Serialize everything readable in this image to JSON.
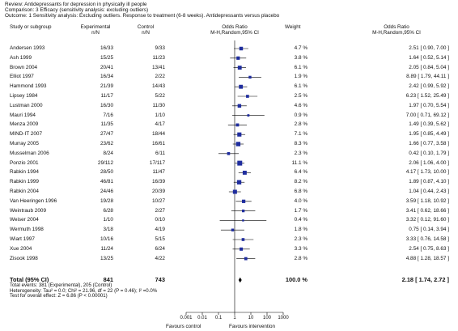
{
  "header": {
    "review": "Review:  Antidepressants for depression in physically ill people",
    "comparison": "Comparison:  3 Efficacy (sensitivity analysis: excluding outliers)",
    "outcome": "Outcome:  1 Sensitivity analysis: Excluding outliers. Response to treatment (6-8 weeks). Antidepressants versus placebo"
  },
  "columns": {
    "study_line1": "Study or subgroup",
    "exp_line1": "Experimental",
    "exp_line2": "n/N",
    "ctl_line1": "Control",
    "ctl_line2": "n/N",
    "or_line1": "Odds Ratio",
    "or_line2": "M-H,Random,95% CI",
    "weight_line1": "Weight",
    "ci_line1": "Odds Ratio",
    "ci_line2": "M-H,Random,95% CI"
  },
  "chart_data": {
    "type": "forest",
    "x_scale": "log",
    "xlim": [
      0.001,
      1000
    ],
    "x_ticks": [
      "0.001",
      "0.01",
      "0.1",
      "1",
      "10",
      "100",
      "1000"
    ],
    "studies": [
      {
        "name": "Andersen 1993",
        "exp": "16/33",
        "ctl": "9/33",
        "weight": "4.7 %",
        "ci_text": "2.51 [ 0.90, 7.00 ]",
        "or": 2.51,
        "lo": 0.9,
        "hi": 7.0,
        "w": 4.7
      },
      {
        "name": "Ash 1999",
        "exp": "15/25",
        "ctl": "11/23",
        "weight": "3.8 %",
        "ci_text": "1.64 [ 0.52, 5.14 ]",
        "or": 1.64,
        "lo": 0.52,
        "hi": 5.14,
        "w": 3.8
      },
      {
        "name": "Brown 2004",
        "exp": "20/41",
        "ctl": "13/41",
        "weight": "6.1 %",
        "ci_text": "2.05 [ 0.84, 5.04 ]",
        "or": 2.05,
        "lo": 0.84,
        "hi": 5.04,
        "w": 6.1
      },
      {
        "name": "Elliot 1997",
        "exp": "16/34",
        "ctl": "2/22",
        "weight": "1.9 %",
        "ci_text": "8.89 [ 1.79, 44.11 ]",
        "or": 8.89,
        "lo": 1.79,
        "hi": 44.11,
        "w": 1.9
      },
      {
        "name": "Hammond 1993",
        "exp": "21/39",
        "ctl": "14/43",
        "weight": "6.1 %",
        "ci_text": "2.42 [ 0.99, 5.92 ]",
        "or": 2.42,
        "lo": 0.99,
        "hi": 5.92,
        "w": 6.1
      },
      {
        "name": "Lipsey 1984",
        "exp": "11/17",
        "ctl": "5/22",
        "weight": "2.5 %",
        "ci_text": "6.23 [ 1.52, 25.49 ]",
        "or": 6.23,
        "lo": 1.52,
        "hi": 25.49,
        "w": 2.5
      },
      {
        "name": "Lustman 2000",
        "exp": "16/30",
        "ctl": "11/30",
        "weight": "4.6 %",
        "ci_text": "1.97 [ 0.70, 5.54 ]",
        "or": 1.97,
        "lo": 0.7,
        "hi": 5.54,
        "w": 4.6
      },
      {
        "name": "Mauri 1994",
        "exp": "7/16",
        "ctl": "1/10",
        "weight": "0.9 %",
        "ci_text": "7.00 [ 0.71, 69.12 ]",
        "or": 7.0,
        "lo": 0.71,
        "hi": 69.12,
        "w": 0.9
      },
      {
        "name": "Menza 2009",
        "exp": "11/35",
        "ctl": "4/17",
        "weight": "2.8 %",
        "ci_text": "1.49 [ 0.39, 5.62 ]",
        "or": 1.49,
        "lo": 0.39,
        "hi": 5.62,
        "w": 2.8
      },
      {
        "name": "MIND-IT 2007",
        "exp": "27/47",
        "ctl": "18/44",
        "weight": "7.1 %",
        "ci_text": "1.95 [ 0.85, 4.49 ]",
        "or": 1.95,
        "lo": 0.85,
        "hi": 4.49,
        "w": 7.1
      },
      {
        "name": "Murray 2005",
        "exp": "23/62",
        "ctl": "16/61",
        "weight": "8.3 %",
        "ci_text": "1.66 [ 0.77, 3.58 ]",
        "or": 1.66,
        "lo": 0.77,
        "hi": 3.58,
        "w": 8.3
      },
      {
        "name": "Musselman 2006",
        "exp": "8/24",
        "ctl": "6/11",
        "weight": "2.3 %",
        "ci_text": "0.42 [ 0.10, 1.79 ]",
        "or": 0.42,
        "lo": 0.1,
        "hi": 1.79,
        "w": 2.3
      },
      {
        "name": "Ponzio 2001",
        "exp": "29/112",
        "ctl": "17/117",
        "weight": "11.1 %",
        "ci_text": "2.06 [ 1.06, 4.00 ]",
        "or": 2.06,
        "lo": 1.06,
        "hi": 4.0,
        "w": 11.1
      },
      {
        "name": "Rabkin 1994",
        "exp": "28/50",
        "ctl": "11/47",
        "weight": "6.4 %",
        "ci_text": "4.17 [ 1.73, 10.00 ]",
        "or": 4.17,
        "lo": 1.73,
        "hi": 10.0,
        "w": 6.4
      },
      {
        "name": "Rabkin 1999",
        "exp": "46/81",
        "ctl": "16/39",
        "weight": "8.2 %",
        "ci_text": "1.89 [ 0.87, 4.10 ]",
        "or": 1.89,
        "lo": 0.87,
        "hi": 4.1,
        "w": 8.2
      },
      {
        "name": "Rabkin 2004",
        "exp": "24/46",
        "ctl": "20/39",
        "weight": "6.8 %",
        "ci_text": "1.04 [ 0.44, 2.43 ]",
        "or": 1.04,
        "lo": 0.44,
        "hi": 2.43,
        "w": 6.8
      },
      {
        "name": "Van Heeringen 1996",
        "exp": "19/28",
        "ctl": "10/27",
        "weight": "4.0 %",
        "ci_text": "3.59 [ 1.18, 10.92 ]",
        "or": 3.59,
        "lo": 1.18,
        "hi": 10.92,
        "w": 4.0
      },
      {
        "name": "Weintraub 2009",
        "exp": "6/28",
        "ctl": "2/27",
        "weight": "1.7 %",
        "ci_text": "3.41 [ 0.62, 18.66 ]",
        "or": 3.41,
        "lo": 0.62,
        "hi": 18.66,
        "w": 1.7
      },
      {
        "name": "Weiser 2004",
        "exp": "1/10",
        "ctl": "0/10",
        "weight": "0.4 %",
        "ci_text": "3.32 [ 0.12, 91.60 ]",
        "or": 3.32,
        "lo": 0.12,
        "hi": 91.6,
        "w": 0.4
      },
      {
        "name": "Wermuth 1998",
        "exp": "3/18",
        "ctl": "4/19",
        "weight": "1.8 %",
        "ci_text": "0.75 [ 0.14, 3.94 ]",
        "or": 0.75,
        "lo": 0.14,
        "hi": 3.94,
        "w": 1.8
      },
      {
        "name": "Wiart 1997",
        "exp": "10/16",
        "ctl": "5/15",
        "weight": "2.3 %",
        "ci_text": "3.33 [ 0.76, 14.58 ]",
        "or": 3.33,
        "lo": 0.76,
        "hi": 14.58,
        "w": 2.3
      },
      {
        "name": "Xue 2004",
        "exp": "11/24",
        "ctl": "6/24",
        "weight": "3.3 %",
        "ci_text": "2.54 [ 0.75, 8.63 ]",
        "or": 2.54,
        "lo": 0.75,
        "hi": 8.63,
        "w": 3.3
      },
      {
        "name": "Zisook 1998",
        "exp": "13/25",
        "ctl": "4/22",
        "weight": "2.8 %",
        "ci_text": "4.88 [ 1.28, 18.57 ]",
        "or": 4.88,
        "lo": 1.28,
        "hi": 18.57,
        "w": 2.8
      }
    ],
    "total": {
      "name": "Total (95% CI)",
      "exp": "841",
      "ctl": "743",
      "weight": "100.0 %",
      "ci_text": "2.18 [ 1.74, 2.72 ]",
      "or": 2.18,
      "lo": 1.74,
      "hi": 2.72
    },
    "footnotes": [
      "Total events: 381 (Experimental), 205 (Control)",
      "Heterogeneity: Tau² = 0.0; Chi² = 21.96, df = 22 (P = 0.46); I² =0.0%",
      "Test for overall effect: Z = 6.86 (P < 0.00001)"
    ],
    "favours_left": "Favours control",
    "favours_right": "Favours intervention",
    "marker_color": "#1f2d9e"
  }
}
